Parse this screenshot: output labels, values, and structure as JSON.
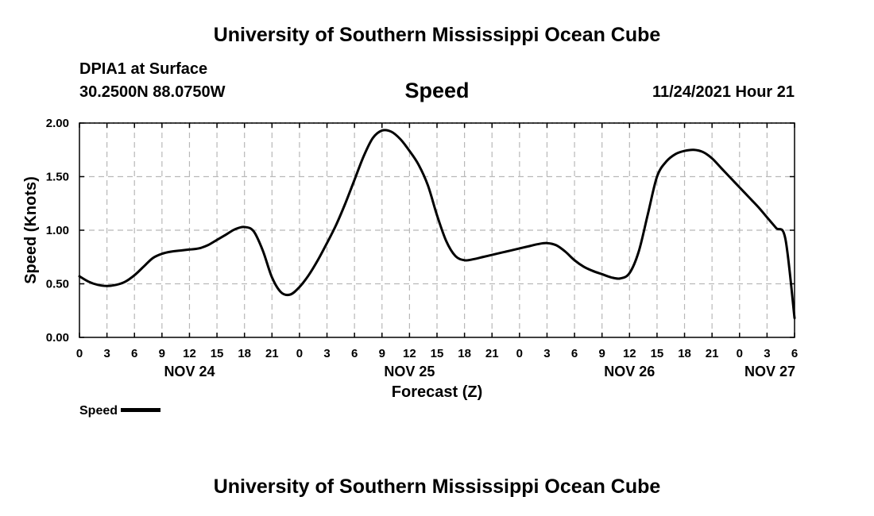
{
  "page": {
    "title_top": "University of Southern Mississippi Ocean Cube",
    "title_bottom": "University of Southern Mississippi Ocean Cube",
    "station": "DPIA1 at Surface",
    "coords": "30.2500N  88.0750W",
    "chart_title": "Speed",
    "datetime": "11/24/2021 Hour 21",
    "legend_label": "Speed"
  },
  "colors": {
    "series": "#000000",
    "grid": "#b8b8b8",
    "background": "#ffffff"
  },
  "chart_data": {
    "type": "line",
    "title": "Speed",
    "xlabel": "Forecast (Z)",
    "ylabel": "Speed (Knots)",
    "x_unit": "hours since NOV 24 00Z",
    "xlim": [
      0,
      78
    ],
    "ylim": [
      0,
      2
    ],
    "y_ticks": [
      0,
      0.5,
      1.0,
      1.5,
      2.0
    ],
    "y_tick_labels": [
      "0.00",
      "0.50",
      "1.00",
      "1.50",
      "2.00"
    ],
    "x_ticks": [
      0,
      3,
      6,
      9,
      12,
      15,
      18,
      21,
      24,
      27,
      30,
      33,
      36,
      39,
      42,
      45,
      48,
      51,
      54,
      57,
      60,
      63,
      66,
      69,
      72,
      75,
      78
    ],
    "x_tick_labels": [
      "0",
      "3",
      "6",
      "9",
      "12",
      "15",
      "18",
      "21",
      "0",
      "3",
      "6",
      "9",
      "12",
      "15",
      "18",
      "21",
      "0",
      "3",
      "6",
      "9",
      "12",
      "15",
      "18",
      "21",
      "0",
      "3",
      "6"
    ],
    "date_labels": [
      {
        "x": 12,
        "label": "NOV 24"
      },
      {
        "x": 36,
        "label": "NOV 25"
      },
      {
        "x": 60,
        "label": "NOV 26"
      },
      {
        "x": 78,
        "label": "NOV 27"
      }
    ],
    "grid": true,
    "legend": "bottom-left",
    "series": [
      {
        "name": "Speed",
        "x": [
          0,
          1,
          2,
          3,
          4,
          5,
          6,
          7,
          8,
          9,
          10,
          11,
          12,
          13,
          14,
          15,
          16,
          17,
          18,
          19,
          20,
          21,
          22,
          23,
          24,
          25,
          26,
          27,
          28,
          29,
          30,
          31,
          32,
          33,
          34,
          35,
          36,
          37,
          38,
          39,
          40,
          41,
          42,
          43,
          44,
          45,
          46,
          47,
          48,
          49,
          50,
          51,
          52,
          53,
          54,
          55,
          56,
          57,
          58,
          59,
          60,
          61,
          62,
          63,
          64,
          65,
          66,
          67,
          68,
          69,
          70,
          71,
          72,
          73,
          74,
          75,
          76,
          77,
          78
        ],
        "values": [
          0.57,
          0.52,
          0.49,
          0.48,
          0.49,
          0.52,
          0.58,
          0.66,
          0.74,
          0.78,
          0.8,
          0.81,
          0.82,
          0.83,
          0.86,
          0.91,
          0.96,
          1.01,
          1.03,
          0.99,
          0.81,
          0.56,
          0.42,
          0.4,
          0.47,
          0.58,
          0.72,
          0.88,
          1.05,
          1.25,
          1.47,
          1.69,
          1.86,
          1.93,
          1.92,
          1.85,
          1.74,
          1.61,
          1.42,
          1.14,
          0.9,
          0.76,
          0.72,
          0.73,
          0.75,
          0.77,
          0.79,
          0.81,
          0.83,
          0.85,
          0.87,
          0.88,
          0.86,
          0.8,
          0.72,
          0.66,
          0.62,
          0.59,
          0.56,
          0.55,
          0.6,
          0.8,
          1.15,
          1.5,
          1.64,
          1.71,
          1.74,
          1.75,
          1.73,
          1.67,
          1.58,
          1.49,
          1.4,
          1.31,
          1.22,
          1.12,
          1.02,
          0.92,
          0.18
        ]
      }
    ]
  }
}
